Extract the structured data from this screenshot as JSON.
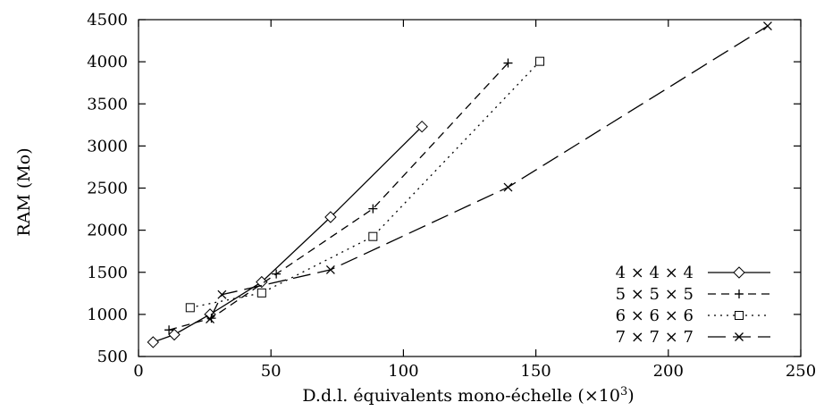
{
  "chart_data": {
    "type": "line",
    "xlabel": "D.d.l. équivalents mono-échelle (×10",
    "xlabel_sup": "3",
    "xlabel_end": ")",
    "ylabel": "RAM (Mo)",
    "xlim": [
      0,
      250
    ],
    "ylim": [
      500,
      4500
    ],
    "xticks": [
      0,
      50,
      100,
      150,
      200,
      250
    ],
    "yticks": [
      500,
      1000,
      1500,
      2000,
      2500,
      3000,
      3500,
      4000,
      4500
    ],
    "grid": false,
    "legend_position": "bottom-right",
    "series": [
      {
        "name": "4 × 4 × 4",
        "marker": "diamond",
        "dash": "solid",
        "points": [
          [
            5.5,
            670
          ],
          [
            13.5,
            760
          ],
          [
            27,
            1000
          ],
          [
            46.5,
            1385
          ],
          [
            72.5,
            2155
          ],
          [
            107,
            3230
          ]
        ]
      },
      {
        "name": "5 × 5 × 5",
        "marker": "plus",
        "dash": "dashed",
        "points": [
          [
            11.5,
            815
          ],
          [
            27.5,
            955
          ],
          [
            52,
            1480
          ],
          [
            88.5,
            2255
          ],
          [
            139.5,
            3985
          ]
        ]
      },
      {
        "name": "6 × 6 × 6",
        "marker": "square",
        "dash": "dotted",
        "points": [
          [
            19.5,
            1080
          ],
          [
            46.5,
            1255
          ],
          [
            88.5,
            1925
          ],
          [
            151.5,
            4005
          ]
        ]
      },
      {
        "name": "7 × 7 × 7",
        "marker": "cross",
        "dash": "longdash",
        "points": [
          [
            27,
            945
          ],
          [
            31.5,
            1235
          ],
          [
            72.5,
            1530
          ],
          [
            139.5,
            2510
          ],
          [
            237.5,
            4425
          ]
        ]
      }
    ]
  }
}
